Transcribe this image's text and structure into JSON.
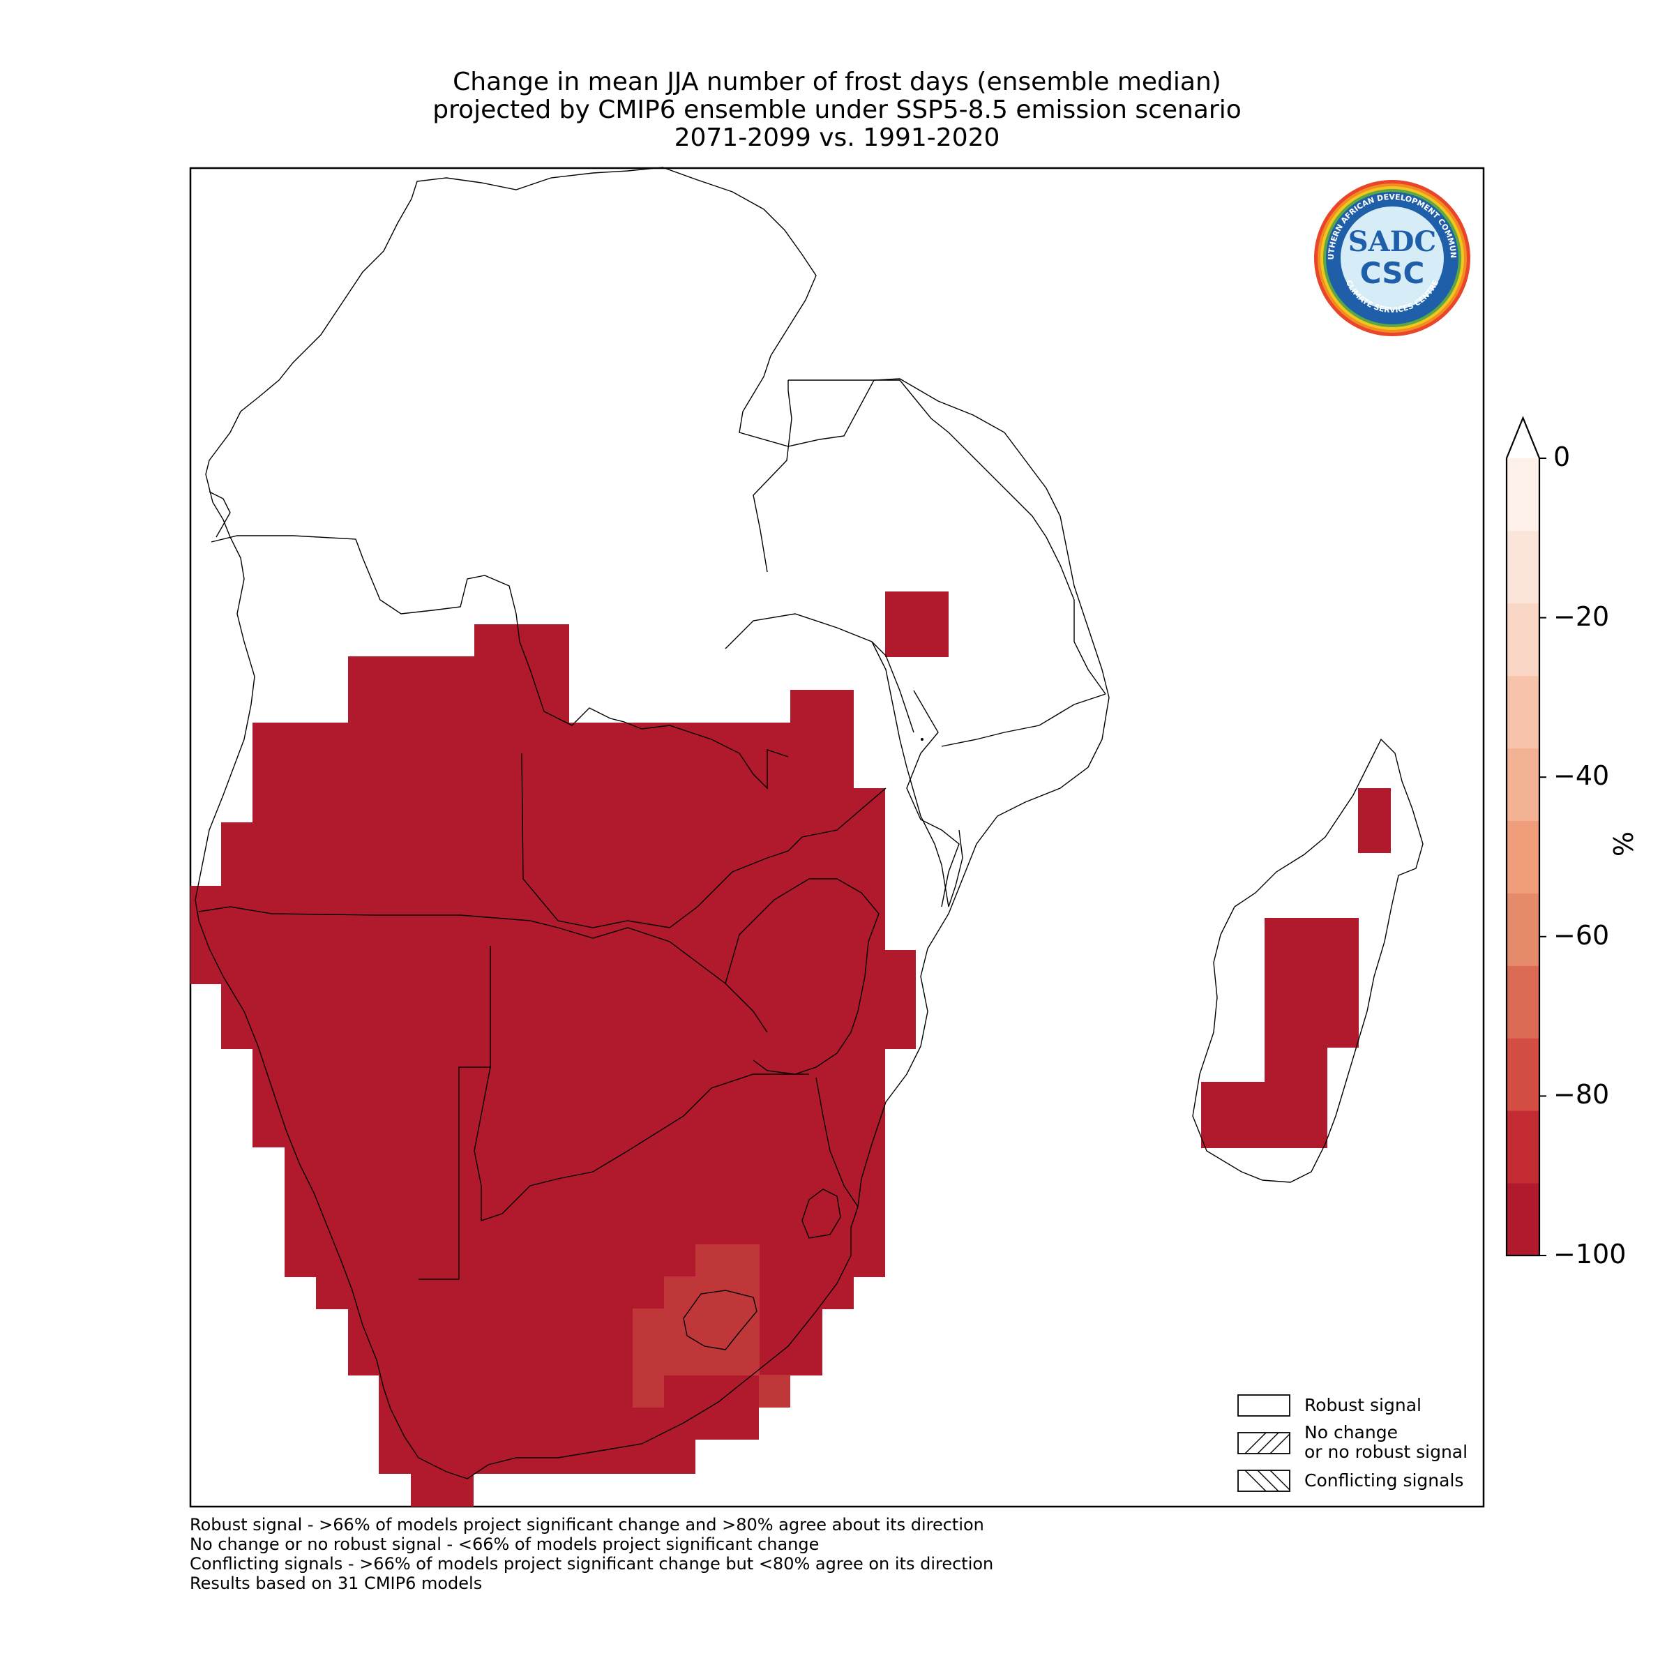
{
  "title": {
    "line1": "Change in mean JJA number of frost days (ensemble median)",
    "line2": "projected by CMIP6 ensemble under SSP5-8.5 emission scenario",
    "line3": "2071-2099 vs. 1991-2020"
  },
  "colorbar": {
    "unit": "%",
    "ticks": [
      "0",
      "−20",
      "−40",
      "−60",
      "−80",
      "−100"
    ],
    "tick_values": [
      0,
      -20,
      -40,
      -60,
      -80,
      -100
    ],
    "range": [
      -100,
      0
    ],
    "extend": "max",
    "colors": [
      "#b01a2c",
      "#c42c33",
      "#d44d43",
      "#dc6b56",
      "#e58a6b",
      "#ef9d7a",
      "#f4b294",
      "#f7c4ab",
      "#f9d6c5",
      "#fbe5da",
      "#fdf1ea"
    ]
  },
  "legend": {
    "robust": "Robust signal",
    "no_change_1": "No change",
    "no_change_2": "or no robust signal",
    "conflicting": "Conflicting signals"
  },
  "footnotes": {
    "line1": "Robust signal - >66% of models project significant change and >80% agree about its direction",
    "line2": "No change or no robust signal - <66% of models project significant change",
    "line3": "Conflicting signals - >66% of models project significant change but <80% agree on its direction",
    "line4": "Results based on 31 CMIP6 models"
  },
  "logo": {
    "top_text": "SOUTHERN AFRICAN DEVELOPMENT COMMUNITY",
    "bottom_text": "CLIMATE SERVICES CENTRE",
    "mark_top": "SADC",
    "mark_bottom": "CSC"
  },
  "colors": {
    "main_fill": "#b01a2c",
    "secondary_fill": "#c0373a"
  }
}
